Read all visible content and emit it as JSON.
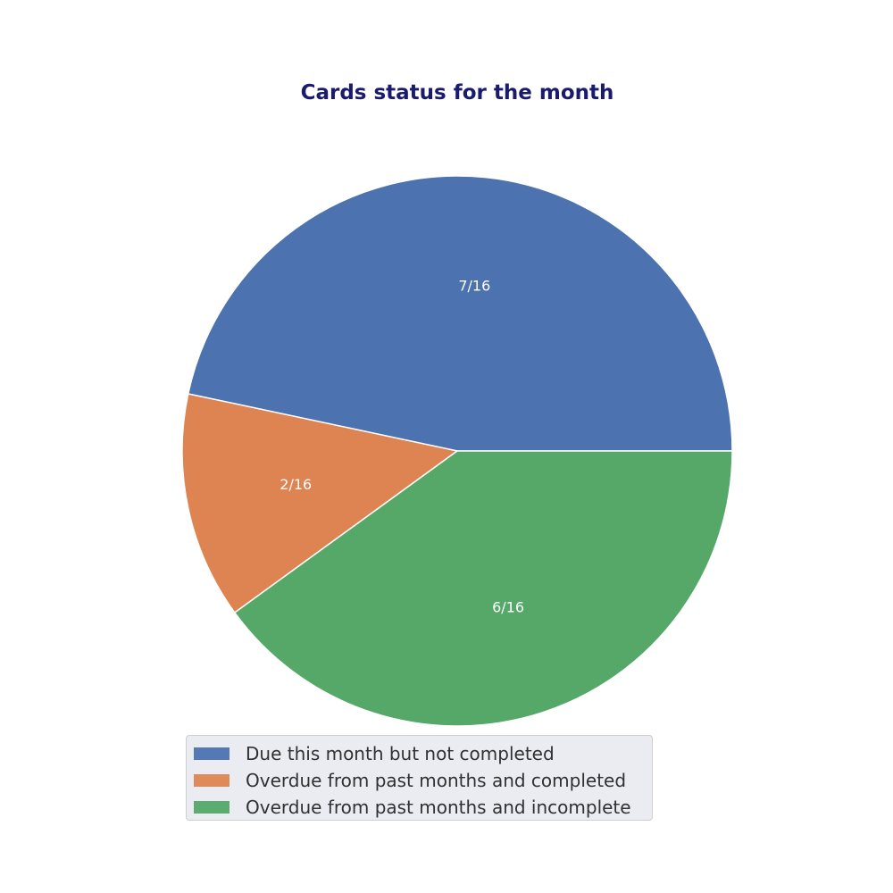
{
  "chart_data": {
    "type": "pie",
    "title": "Cards status for the month",
    "slices": [
      {
        "name": "Due this month but not completed",
        "value": 7,
        "label": "7/16",
        "color": "#4c72b0"
      },
      {
        "name": "Overdue from past months and completed",
        "value": 2,
        "label": "2/16",
        "color": "#dd8452"
      },
      {
        "name": "Overdue from past months and incomplete",
        "value": 6,
        "label": "6/16",
        "color": "#55a868"
      }
    ],
    "start_angle_deg": 0,
    "direction": "counterclockwise",
    "legend_placement": "bottom-center"
  }
}
